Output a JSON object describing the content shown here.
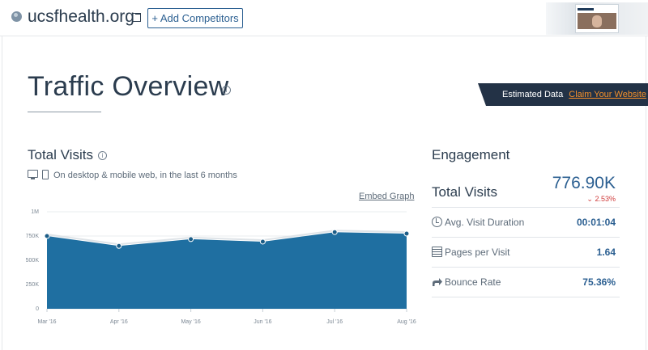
{
  "header": {
    "domain": "ucsfhealth.org",
    "add_competitors_label": "+ Add Competitors"
  },
  "overview": {
    "title": "Traffic Overview",
    "estimated_label": "Estimated Data",
    "claim_label": "Claim Your Website"
  },
  "total_visits": {
    "title": "Total Visits",
    "subtitle": "On desktop & mobile web, in the last 6 months",
    "embed_label": "Embed Graph"
  },
  "chart_data": {
    "type": "area",
    "categories": [
      "Mar '16",
      "Apr '16",
      "May '16",
      "Jun '16",
      "Jul '16",
      "Aug '16"
    ],
    "values": [
      750000,
      648000,
      718000,
      692000,
      790000,
      775000
    ],
    "yticks": [
      {
        "value": 1000000,
        "label": "1M"
      },
      {
        "value": 750000,
        "label": "750K"
      },
      {
        "value": 500000,
        "label": "500K"
      },
      {
        "value": 250000,
        "label": "250K"
      },
      {
        "value": 0,
        "label": "0"
      }
    ],
    "ylim": [
      0,
      1000000
    ],
    "grid": true,
    "color": "#1f6fa1"
  },
  "engagement": {
    "title": "Engagement",
    "total_visits_label": "Total Visits",
    "total_visits_value": "776.90K",
    "total_visits_change": "2.53%",
    "change_color": "#cf3b3b",
    "rows": [
      {
        "label": "Avg. Visit Duration",
        "value": "00:01:04",
        "icon": "clock-icon"
      },
      {
        "label": "Pages per Visit",
        "value": "1.64",
        "icon": "pages-icon"
      },
      {
        "label": "Bounce Rate",
        "value": "75.36%",
        "icon": "bounce-arrow-icon"
      }
    ]
  }
}
